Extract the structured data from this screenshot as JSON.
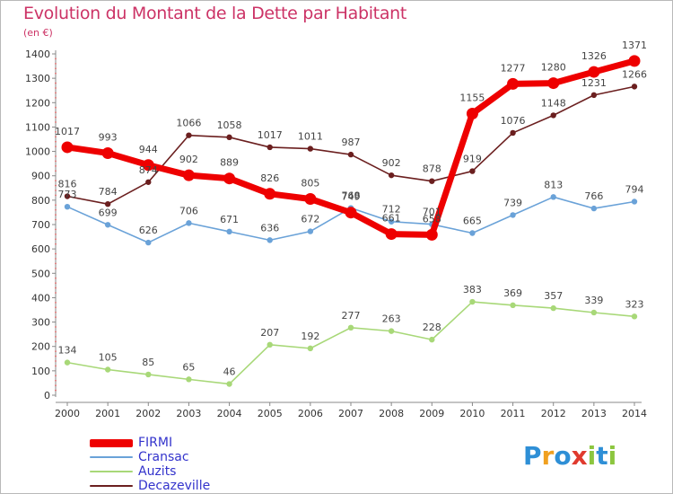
{
  "title": "Evolution du Montant de la Dette par Habitant",
  "unit_label": "(en €)",
  "logo": {
    "text": "Proxiti",
    "letters": [
      {
        "ch": "P",
        "color": "#2e8fd6"
      },
      {
        "ch": "r",
        "color": "#f0a020"
      },
      {
        "ch": "o",
        "color": "#2e8fd6"
      },
      {
        "ch": "x",
        "color": "#e03a2e"
      },
      {
        "ch": "i",
        "color": "#8cc63f"
      },
      {
        "ch": "t",
        "color": "#2e8fd6"
      },
      {
        "ch": "i",
        "color": "#8cc63f"
      }
    ]
  },
  "chart_data": {
    "type": "line",
    "title": "Evolution du Montant de la Dette par Habitant",
    "ylabel": "(en €)",
    "xlabel": "",
    "x": [
      2000,
      2001,
      2002,
      2003,
      2004,
      2005,
      2006,
      2007,
      2008,
      2009,
      2010,
      2011,
      2012,
      2013,
      2014
    ],
    "ylim": [
      0,
      1400
    ],
    "yticks": [
      0,
      100,
      200,
      300,
      400,
      500,
      600,
      700,
      800,
      900,
      1000,
      1100,
      1200,
      1300,
      1400
    ],
    "grid": false,
    "legend_position": "bottom-left",
    "series": [
      {
        "name": "Decazeville",
        "color": "#6b1f1f",
        "values": [
          816,
          784,
          874,
          1066,
          1058,
          1017,
          1011,
          987,
          902,
          878,
          919,
          1076,
          1148,
          1231,
          1266
        ]
      },
      {
        "name": "Auzits",
        "color": "#a8d878",
        "values": [
          134,
          105,
          85,
          65,
          46,
          207,
          192,
          277,
          263,
          228,
          383,
          369,
          357,
          339,
          323
        ]
      },
      {
        "name": "Cransac",
        "color": "#6aa2d8",
        "values": [
          773,
          699,
          626,
          706,
          671,
          636,
          672,
          768,
          712,
          701,
          665,
          739,
          813,
          766,
          794
        ]
      },
      {
        "name": "FIRMI",
        "color": "#ee0000",
        "values": [
          1017,
          993,
          944,
          902,
          889,
          826,
          805,
          749,
          661,
          658,
          1155,
          1277,
          1280,
          1326,
          1371
        ]
      }
    ],
    "data_labels": [
      {
        "series": "Decazeville",
        "labels": [
          "816",
          "784",
          "874",
          "1066",
          "1058",
          "1017",
          "1011",
          "987",
          "902",
          "878",
          "919",
          "1076",
          "1148",
          "1231",
          "1266"
        ]
      },
      {
        "series": "Auzits",
        "labels": [
          "134",
          "105",
          "85",
          "65",
          "46",
          "207",
          "192",
          "277",
          "263",
          "228",
          "383",
          "369",
          "357",
          "339",
          "323"
        ]
      },
      {
        "series": "Cransac",
        "labels": [
          "773",
          "699",
          "626",
          "706",
          "671",
          "636",
          "672",
          "768",
          "712",
          "701",
          "665",
          "739",
          "813",
          "766",
          "794"
        ]
      },
      {
        "series": "FIRMI",
        "labels": [
          "1017",
          "993",
          "944",
          "902",
          "889",
          "826",
          "805",
          "749",
          "661",
          "658",
          "1155",
          "1277",
          "1280",
          "1326",
          "1371"
        ]
      }
    ]
  },
  "legend": [
    {
      "label": "FIRMI",
      "color": "#ee0000"
    },
    {
      "label": "Cransac",
      "color": "#6aa2d8"
    },
    {
      "label": "Auzits",
      "color": "#a8d878"
    },
    {
      "label": "Decazeville",
      "color": "#6b1f1f"
    }
  ]
}
